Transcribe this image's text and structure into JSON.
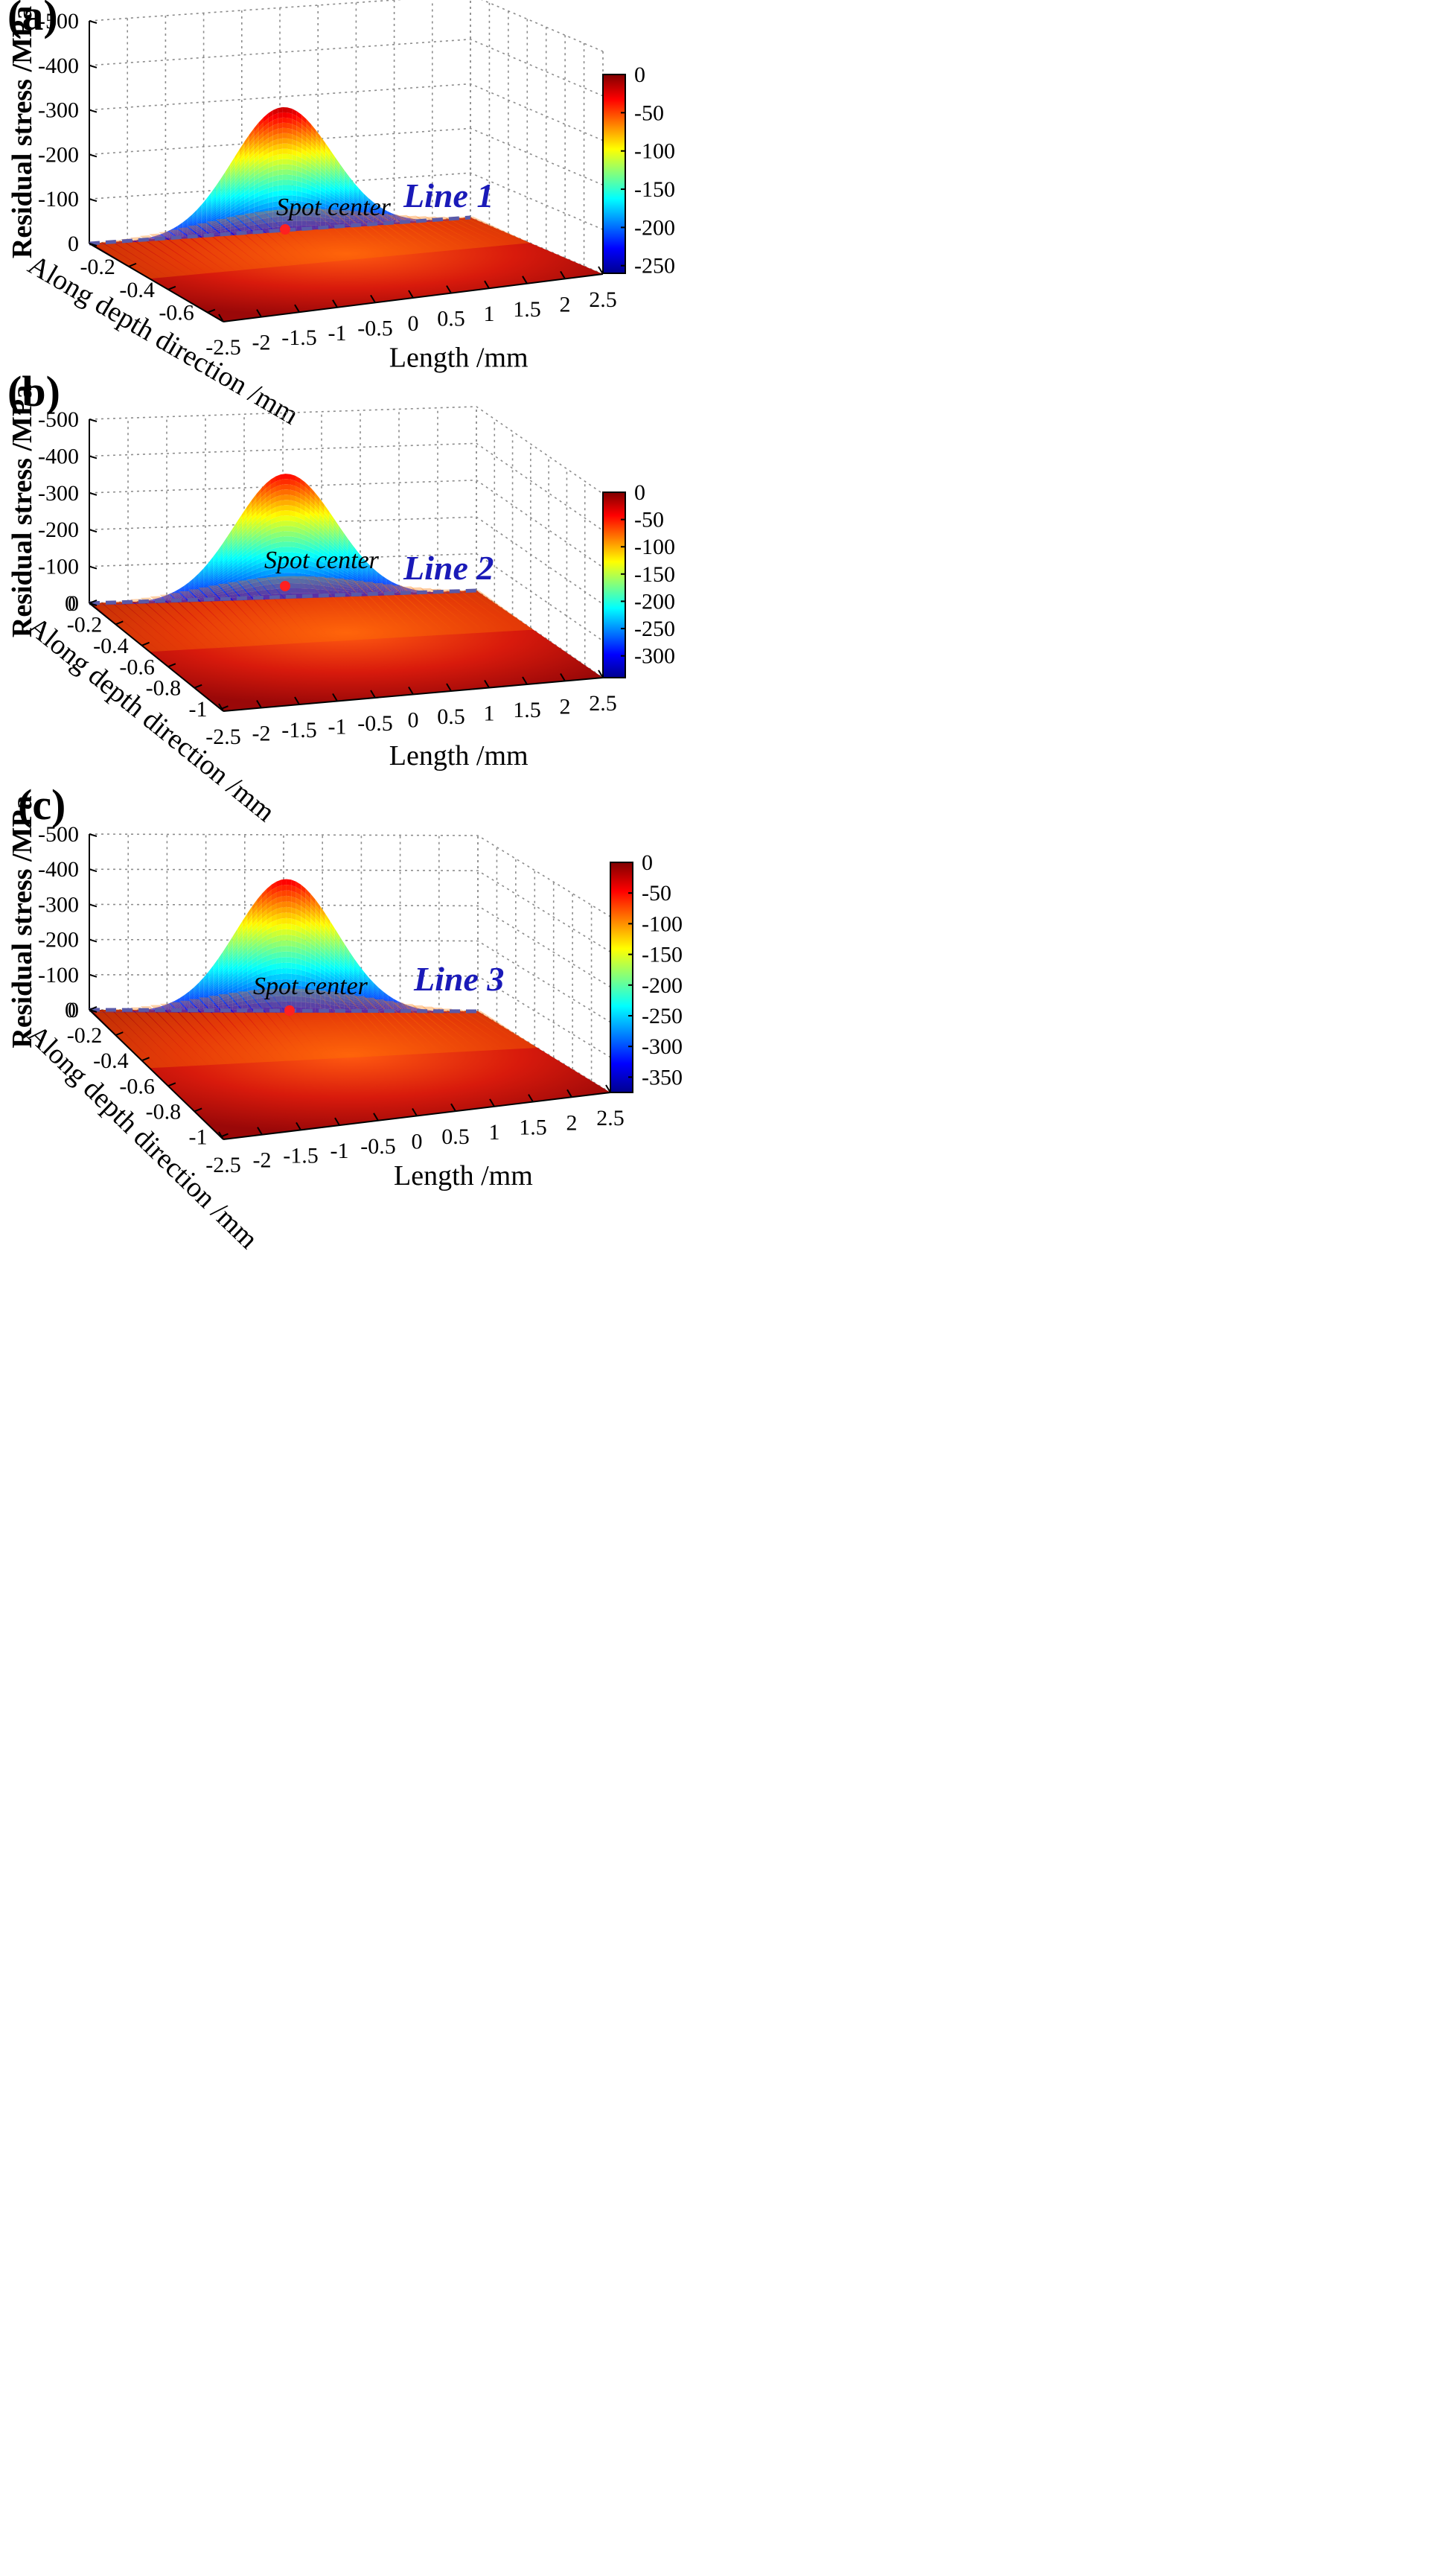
{
  "figure": {
    "panel_labels": [
      "(a)",
      "(b)",
      "(c)"
    ]
  },
  "chart_data": [
    {
      "type": "surface",
      "panel": "(a)",
      "zlabel": "Residual stress /MPa",
      "xlabel": "Length /mm",
      "ylabel": "Along depth direction /mm",
      "x_ticks": [
        "-2.5",
        "-2",
        "-1.5",
        "-1",
        "-0.5",
        "0",
        "0.5",
        "1",
        "1.5",
        "2",
        "2.5"
      ],
      "x_range": [
        -2.5,
        2.5
      ],
      "y_ticks": [
        "-0.2",
        "-0.4",
        "-0.6"
      ],
      "y_range": [
        0,
        -0.7
      ],
      "z_ticks": [
        "0",
        "-100",
        "-200",
        "-300",
        "-400",
        "-500"
      ],
      "z_range": [
        0,
        -500
      ],
      "peak_stress": -280,
      "colorbar_ticks": [
        "0",
        "-50",
        "-100",
        "-150",
        "-200",
        "-250"
      ],
      "colorbar_range": [
        0,
        -260
      ],
      "line_label": "Line 1",
      "spot_label": "Spot center",
      "colors": {
        "line": "#5a5aa8",
        "spot": "#ff2020",
        "label": "#1a1ab8"
      }
    },
    {
      "type": "surface",
      "panel": "(b)",
      "zlabel": "Residual stress /MPa",
      "xlabel": "Length /mm",
      "ylabel": "Along depth direction /mm",
      "x_ticks": [
        "-2.5",
        "-2",
        "-1.5",
        "-1",
        "-0.5",
        "0",
        "0.5",
        "1",
        "1.5",
        "2",
        "2.5"
      ],
      "x_range": [
        -2.5,
        2.5
      ],
      "y_ticks": [
        "0",
        "-0.2",
        "-0.4",
        "-0.6",
        "-0.8",
        "-1"
      ],
      "y_range": [
        0,
        -1
      ],
      "z_ticks": [
        "0",
        "-100",
        "-200",
        "-300",
        "-400",
        "-500"
      ],
      "z_range": [
        0,
        -500
      ],
      "peak_stress": -340,
      "colorbar_ticks": [
        "0",
        "-50",
        "-100",
        "-150",
        "-200",
        "-250",
        "-300"
      ],
      "colorbar_range": [
        0,
        -340
      ],
      "line_label": "Line 2",
      "spot_label": "Spot center",
      "colors": {
        "line": "#5a5aa8",
        "spot": "#ff2020",
        "label": "#1a1ab8"
      }
    },
    {
      "type": "surface",
      "panel": "(c)",
      "zlabel": "Residual stress /MPa",
      "xlabel": "Length /mm",
      "ylabel": "Along depth direction /mm",
      "x_ticks": [
        "-2.5",
        "-2",
        "-1.5",
        "-1",
        "-0.5",
        "0",
        "0.5",
        "1",
        "1.5",
        "2",
        "2.5"
      ],
      "x_range": [
        -2.5,
        2.5
      ],
      "y_ticks": [
        "0",
        "-0.2",
        "-0.4",
        "-0.6",
        "-0.8",
        "-1"
      ],
      "y_range": [
        0,
        -1.1
      ],
      "z_ticks": [
        "0",
        "-100",
        "-200",
        "-300",
        "-400",
        "-500"
      ],
      "z_range": [
        0,
        -500
      ],
      "peak_stress": -380,
      "colorbar_ticks": [
        "0",
        "-50",
        "-100",
        "-150",
        "-200",
        "-250",
        "-300",
        "-350"
      ],
      "colorbar_range": [
        0,
        -375
      ],
      "line_label": "Line 3",
      "spot_label": "Spot center",
      "colors": {
        "line": "#5a5aa8",
        "spot": "#ff2020",
        "label": "#1a1ab8"
      }
    }
  ]
}
